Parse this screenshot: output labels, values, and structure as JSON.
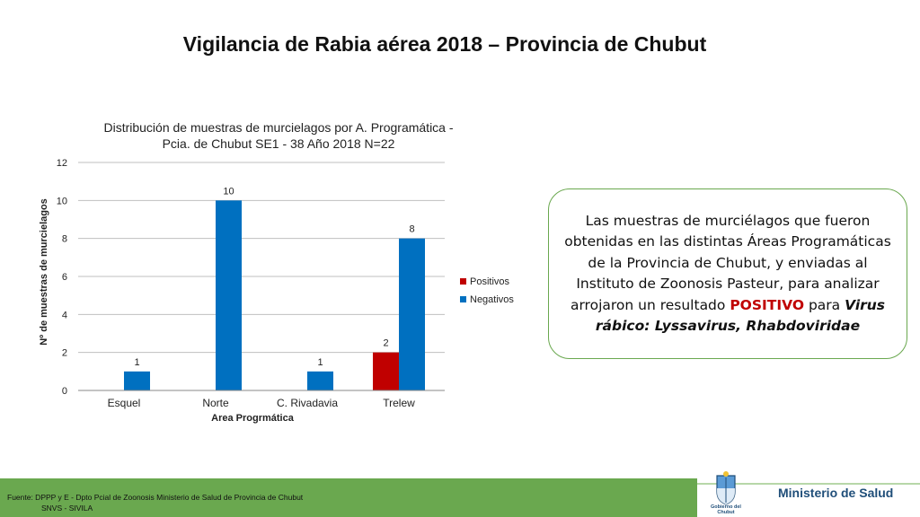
{
  "slide": {
    "title": "Vigilancia de Rabia aérea 2018 – Provincia de Chubut"
  },
  "chart_data": {
    "type": "bar",
    "title_line1": "Distribución de muestras de murcielagos por A. Programática -",
    "title_line2": "Pcia. de Chubut SE1 - 38 Año 2018 N=22",
    "xlabel": "Area Progrmática",
    "ylabel": "Nº de muestras de murcielagos",
    "categories": [
      "Esquel",
      "Norte",
      "C. Rivadavia",
      "Trelew"
    ],
    "series": [
      {
        "name": "Positivos",
        "color": "#c00000",
        "values": [
          0,
          0,
          0,
          2
        ]
      },
      {
        "name": "Negativos",
        "color": "#0070c0",
        "values": [
          1,
          10,
          1,
          8
        ]
      }
    ],
    "ylim": [
      0,
      12
    ],
    "yticks": [
      0,
      2,
      4,
      6,
      8,
      10,
      12
    ],
    "grid": true,
    "legend_position": "right"
  },
  "callout": {
    "text_before": "Las muestras de murciélagos que fueron obtenidas en las distintas Áreas Programáticas de la Provincia de Chubut, y enviadas al Instituto de Zoonosis Pasteur, para analizar arrojaron un resultado ",
    "highlight": "POSITIVO",
    "text_middle": " para ",
    "virus_name": "Virus rábico: Lyssavirus, Rhabdoviridae"
  },
  "footer": {
    "line1": "Fuente:  DPPP y E  - Dpto Pcial de Zoonosis Ministerio de Salud de Provincia de Chubut",
    "line2": "SNVS - SIVILA",
    "logo_text_1": "Gobierno del",
    "logo_text_2": "Chubut",
    "ministry": "Ministerio de Salud"
  },
  "colors": {
    "accent_green": "#6aa84f",
    "positive_red": "#c00000",
    "negative_blue": "#0070c0",
    "ministry_blue": "#1f4e79"
  }
}
